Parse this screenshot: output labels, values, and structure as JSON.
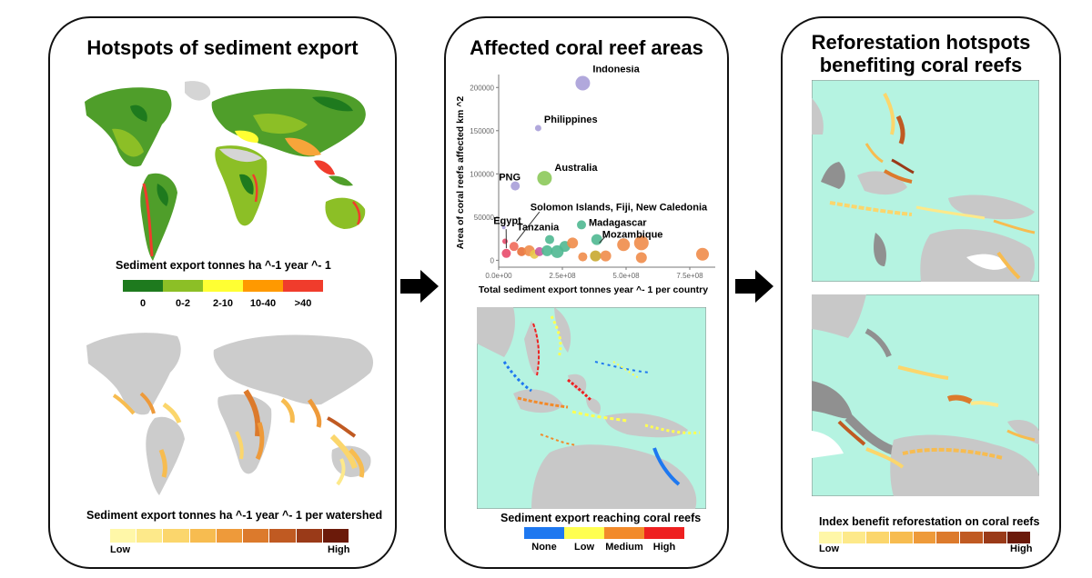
{
  "panel1": {
    "title": "Hotspots of sediment export",
    "legend1": {
      "caption": "Sediment export tonnes ha ^-1 year ^- 1",
      "colors": [
        "#1e7a1e",
        "#8cbf26",
        "#ffff33",
        "#ff9900",
        "#f03c2c"
      ],
      "labels": [
        "0",
        "0-2",
        "2-10",
        "10-40",
        ">40"
      ]
    },
    "legend2": {
      "caption": "Sediment export tonnes ha ^-1 year ^- 1 per watershed",
      "colors": [
        "#fff7a8",
        "#fde98a",
        "#fbd66c",
        "#f7bc50",
        "#ee9a3a",
        "#dc7a2c",
        "#c05a22",
        "#9a3a18",
        "#6b1a0a"
      ],
      "low": "Low",
      "high": "High"
    }
  },
  "panel2": {
    "title": "Affected coral reef areas",
    "chart_data": {
      "type": "scatter",
      "title": "Affected coral reef areas",
      "xlabel": "Total sediment export tonnes year ^- 1 per country",
      "ylabel": "Area of coral reefs affected km ^2",
      "xlim": [
        0,
        850000000
      ],
      "ylim": [
        -8000,
        215000
      ],
      "xticks": [
        "0.0e+00",
        "2.5e+08",
        "5.0e+08",
        "7.5e+08"
      ],
      "xtick_values": [
        0,
        250000000,
        500000000,
        750000000
      ],
      "yticks": [
        "0",
        "50000",
        "100000",
        "150000",
        "200000"
      ],
      "ytick_values": [
        0,
        50000,
        100000,
        150000,
        200000
      ],
      "points": [
        {
          "label": "Indonesia",
          "x": 330000000,
          "y": 205000,
          "size": 8,
          "color": "#a99fd8"
        },
        {
          "label": "Philippines",
          "x": 155000000,
          "y": 153000,
          "size": 3.5,
          "color": "#a99fd8"
        },
        {
          "label": "Australia",
          "x": 180000000,
          "y": 95000,
          "size": 8,
          "color": "#8cc95a"
        },
        {
          "label": "PNG",
          "x": 65000000,
          "y": 86000,
          "size": 5,
          "color": "#a99fd8"
        },
        {
          "label": "Madagascar",
          "x": 325000000,
          "y": 41000,
          "size": 5,
          "color": "#4fb891"
        },
        {
          "label": "Mozambique",
          "x": 385000000,
          "y": 24000,
          "size": 6,
          "color": "#4fb891"
        },
        {
          "label": "Tanzania",
          "x": 200000000,
          "y": 24000,
          "size": 5,
          "color": "#4fb891"
        },
        {
          "label": "",
          "x": 20000000,
          "y": 38000,
          "size": 2,
          "color": "#a99fd8"
        },
        {
          "label": "",
          "x": 25000000,
          "y": 22000,
          "size": 3,
          "color": "#e84a6a"
        },
        {
          "label": "",
          "x": 30000000,
          "y": 8000,
          "size": 5,
          "color": "#e84a6a"
        },
        {
          "label": "",
          "x": 60000000,
          "y": 16000,
          "size": 5,
          "color": "#f06a5a"
        },
        {
          "label": "",
          "x": 90000000,
          "y": 10000,
          "size": 5,
          "color": "#e87038"
        },
        {
          "label": "",
          "x": 120000000,
          "y": 11000,
          "size": 6,
          "color": "#f08c4a"
        },
        {
          "label": "",
          "x": 140000000,
          "y": 7000,
          "size": 5,
          "color": "#e8c94a"
        },
        {
          "label": "",
          "x": 160000000,
          "y": 10000,
          "size": 5,
          "color": "#c85aa0"
        },
        {
          "label": "",
          "x": 190000000,
          "y": 11000,
          "size": 6,
          "color": "#4fb891"
        },
        {
          "label": "",
          "x": 230000000,
          "y": 10000,
          "size": 7,
          "color": "#4fb891"
        },
        {
          "label": "",
          "x": 260000000,
          "y": 16000,
          "size": 6,
          "color": "#4fb891"
        },
        {
          "label": "",
          "x": 290000000,
          "y": 20000,
          "size": 6,
          "color": "#f08c4a"
        },
        {
          "label": "",
          "x": 330000000,
          "y": 4000,
          "size": 5,
          "color": "#f08c4a"
        },
        {
          "label": "",
          "x": 380000000,
          "y": 5000,
          "size": 6,
          "color": "#c8a830"
        },
        {
          "label": "",
          "x": 420000000,
          "y": 5000,
          "size": 6,
          "color": "#f08c4a"
        },
        {
          "label": "",
          "x": 490000000,
          "y": 18000,
          "size": 7,
          "color": "#f08c4a"
        },
        {
          "label": "",
          "x": 560000000,
          "y": 20000,
          "size": 8,
          "color": "#f08c4a"
        },
        {
          "label": "",
          "x": 560000000,
          "y": 3000,
          "size": 6,
          "color": "#f08c4a"
        },
        {
          "label": "",
          "x": 800000000,
          "y": 7000,
          "size": 7,
          "color": "#f08c4a"
        }
      ],
      "annotations": [
        {
          "label": "Egypt",
          "x": 15000000,
          "y": 42000
        },
        {
          "label": "Solomon Islands, Fiji, New Caledonia",
          "x": 160000000,
          "y": 58000
        }
      ]
    },
    "legend": {
      "caption": "Sediment export reaching coral reefs",
      "colors": [
        "#1e78f0",
        "#ffff50",
        "#f28a2a",
        "#ee2020"
      ],
      "labels": [
        "None",
        "Low",
        "Medium",
        "High"
      ]
    }
  },
  "panel3": {
    "title_line1": "Reforestation hotspots",
    "title_line2": "benefiting coral reefs",
    "legend": {
      "caption": "Index benefit reforestation on coral reefs",
      "colors": [
        "#fff7a8",
        "#fde98a",
        "#fbd66c",
        "#f7bc50",
        "#ee9a3a",
        "#dc7a2c",
        "#c05a22",
        "#9a3a18",
        "#6b1a0a"
      ],
      "low": "Low",
      "high": "High"
    }
  }
}
